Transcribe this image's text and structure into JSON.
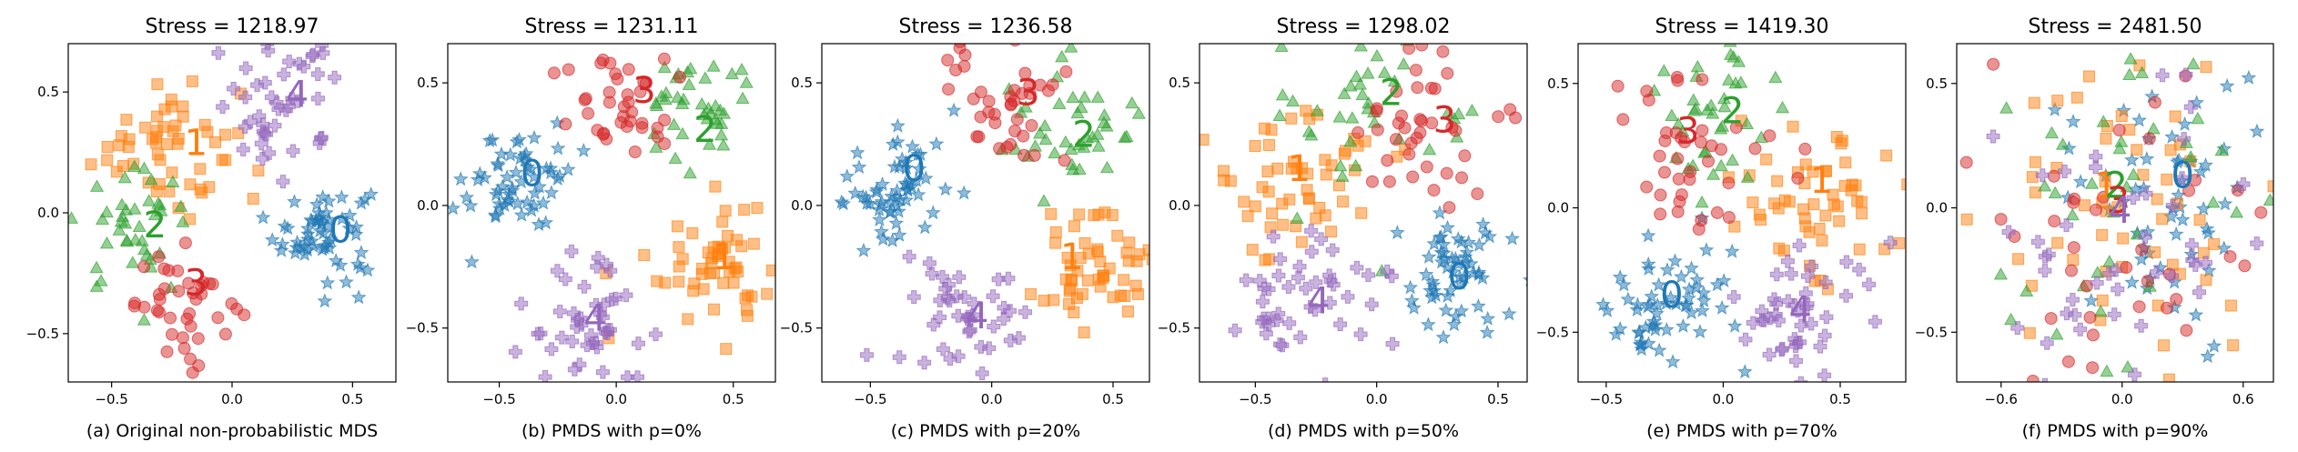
{
  "colors": {
    "0": "#1f77b4",
    "1": "#ff7f0e",
    "2": "#2ca02c",
    "3": "#d62728",
    "4": "#9467bd"
  },
  "markers": {
    "0": "star",
    "1": "square",
    "2": "triangle",
    "3": "circle",
    "4": "plus"
  },
  "chart_data": [
    {
      "type": "scatter",
      "title": "Stress = 1218.97",
      "caption": "(a) Original non-probabilistic MDS",
      "xlim": [
        -0.68,
        0.68
      ],
      "ylim": [
        -0.7,
        0.7
      ],
      "xticks": [
        -0.5,
        0.0,
        0.5
      ],
      "xtick_labels": [
        "−0.5",
        "0.0",
        "0.5"
      ],
      "yticks": [
        -0.5,
        0.0,
        0.5
      ],
      "ytick_labels": [
        "−0.5",
        "0.0",
        "0.5"
      ],
      "clusters": [
        {
          "label": "0",
          "center": [
            0.38,
            -0.08
          ],
          "spread": 0.1,
          "n": 60
        },
        {
          "label": "1",
          "center": [
            -0.28,
            0.3
          ],
          "spread": 0.15,
          "n": 55
        },
        {
          "label": "2",
          "center": [
            -0.42,
            -0.08
          ],
          "spread": 0.12,
          "n": 40
        },
        {
          "label": "3",
          "center": [
            -0.18,
            -0.38
          ],
          "spread": 0.11,
          "n": 40
        },
        {
          "label": "4",
          "center": [
            0.2,
            0.45
          ],
          "spread": 0.14,
          "n": 45
        }
      ],
      "text_labels": [
        {
          "text": "0",
          "x": 0.45,
          "y": -0.08,
          "cluster": "0"
        },
        {
          "text": "1",
          "x": -0.15,
          "y": 0.28,
          "cluster": "1"
        },
        {
          "text": "2",
          "x": -0.32,
          "y": -0.06,
          "cluster": "2"
        },
        {
          "text": "3",
          "x": -0.15,
          "y": -0.3,
          "cluster": "3"
        },
        {
          "text": "4",
          "x": 0.27,
          "y": 0.48,
          "cluster": "4"
        }
      ]
    },
    {
      "type": "scatter",
      "title": "Stress = 1231.11",
      "caption": "(b) PMDS with p=0%",
      "xlim": [
        -0.72,
        0.68
      ],
      "ylim": [
        -0.72,
        0.66
      ],
      "xticks": [
        -0.5,
        0.0,
        0.5
      ],
      "xtick_labels": [
        "−0.5",
        "0.0",
        "0.5"
      ],
      "yticks": [
        -0.5,
        0.0,
        0.5
      ],
      "ytick_labels": [
        "−0.5",
        "0.0",
        "0.5"
      ],
      "clusters": [
        {
          "label": "0",
          "center": [
            -0.42,
            0.1
          ],
          "spread": 0.11,
          "n": 60
        },
        {
          "label": "1",
          "center": [
            0.42,
            -0.22
          ],
          "spread": 0.14,
          "n": 55
        },
        {
          "label": "2",
          "center": [
            0.35,
            0.38
          ],
          "spread": 0.12,
          "n": 40
        },
        {
          "label": "3",
          "center": [
            0.0,
            0.45
          ],
          "spread": 0.12,
          "n": 40
        },
        {
          "label": "4",
          "center": [
            -0.12,
            -0.48
          ],
          "spread": 0.14,
          "n": 45
        }
      ],
      "text_labels": [
        {
          "text": "0",
          "x": -0.36,
          "y": 0.12,
          "cluster": "0"
        },
        {
          "text": "1",
          "x": 0.46,
          "y": -0.22,
          "cluster": "1"
        },
        {
          "text": "2",
          "x": 0.38,
          "y": 0.3,
          "cluster": "2"
        },
        {
          "text": "3",
          "x": 0.12,
          "y": 0.46,
          "cluster": "3"
        },
        {
          "text": "4",
          "x": -0.09,
          "y": -0.47,
          "cluster": "4"
        }
      ]
    },
    {
      "type": "scatter",
      "title": "Stress = 1236.58",
      "caption": "(c) PMDS with p=20%",
      "xlim": [
        -0.7,
        0.65
      ],
      "ylim": [
        -0.72,
        0.66
      ],
      "xticks": [
        -0.5,
        0.0,
        0.5
      ],
      "xtick_labels": [
        "−0.5",
        "0.0",
        "0.5"
      ],
      "yticks": [
        -0.5,
        0.0,
        0.5
      ],
      "ytick_labels": [
        "−0.5",
        "0.0",
        "0.5"
      ],
      "clusters": [
        {
          "label": "0",
          "center": [
            -0.38,
            0.08
          ],
          "spread": 0.12,
          "n": 60
        },
        {
          "label": "1",
          "center": [
            0.42,
            -0.28
          ],
          "spread": 0.14,
          "n": 55
        },
        {
          "label": "2",
          "center": [
            0.35,
            0.3
          ],
          "spread": 0.13,
          "n": 40
        },
        {
          "label": "3",
          "center": [
            0.05,
            0.42
          ],
          "spread": 0.13,
          "n": 40
        },
        {
          "label": "4",
          "center": [
            -0.12,
            -0.5
          ],
          "spread": 0.15,
          "n": 45
        }
      ],
      "text_labels": [
        {
          "text": "0",
          "x": -0.32,
          "y": 0.14,
          "cluster": "0"
        },
        {
          "text": "1",
          "x": 0.33,
          "y": -0.22,
          "cluster": "1"
        },
        {
          "text": "2",
          "x": 0.38,
          "y": 0.28,
          "cluster": "2"
        },
        {
          "text": "3",
          "x": 0.15,
          "y": 0.45,
          "cluster": "3"
        },
        {
          "text": "4",
          "x": -0.06,
          "y": -0.46,
          "cluster": "4"
        }
      ]
    },
    {
      "type": "scatter",
      "title": "Stress = 1298.02",
      "caption": "(d) PMDS with p=50%",
      "xlim": [
        -0.73,
        0.62
      ],
      "ylim": [
        -0.72,
        0.66
      ],
      "xticks": [
        -0.5,
        0.0,
        0.5
      ],
      "xtick_labels": [
        "−0.5",
        "0.0",
        "0.5"
      ],
      "yticks": [
        -0.5,
        0.0,
        0.5
      ],
      "ytick_labels": [
        "−0.5",
        "0.0",
        "0.5"
      ],
      "clusters": [
        {
          "label": "0",
          "center": [
            0.3,
            -0.3
          ],
          "spread": 0.13,
          "n": 60
        },
        {
          "label": "1",
          "center": [
            -0.32,
            0.1
          ],
          "spread": 0.17,
          "n": 55
        },
        {
          "label": "2",
          "center": [
            0.0,
            0.4
          ],
          "spread": 0.2,
          "n": 40
        },
        {
          "label": "3",
          "center": [
            0.2,
            0.3
          ],
          "spread": 0.14,
          "n": 40
        },
        {
          "label": "4",
          "center": [
            -0.3,
            -0.38
          ],
          "spread": 0.15,
          "n": 45
        }
      ],
      "text_labels": [
        {
          "text": "0",
          "x": 0.34,
          "y": -0.3,
          "cluster": "0"
        },
        {
          "text": "1",
          "x": -0.32,
          "y": 0.14,
          "cluster": "1"
        },
        {
          "text": "2",
          "x": 0.06,
          "y": 0.45,
          "cluster": "2"
        },
        {
          "text": "3",
          "x": 0.28,
          "y": 0.34,
          "cluster": "3"
        },
        {
          "text": "4",
          "x": -0.24,
          "y": -0.4,
          "cluster": "4"
        }
      ]
    },
    {
      "type": "scatter",
      "title": "Stress = 1419.30",
      "caption": "(e) PMDS with p=70%",
      "xlim": [
        -0.62,
        0.78
      ],
      "ylim": [
        -0.7,
        0.66
      ],
      "xticks": [
        -0.5,
        0.0,
        0.5
      ],
      "xtick_labels": [
        "−0.5",
        "0.0",
        "0.5"
      ],
      "yticks": [
        -0.5,
        0.0,
        0.5
      ],
      "ytick_labels": [
        "−0.5",
        "0.0",
        "0.5"
      ],
      "clusters": [
        {
          "label": "0",
          "center": [
            -0.22,
            -0.38
          ],
          "spread": 0.13,
          "n": 60
        },
        {
          "label": "1",
          "center": [
            0.35,
            0.05
          ],
          "spread": 0.18,
          "n": 55
        },
        {
          "label": "2",
          "center": [
            0.0,
            0.38
          ],
          "spread": 0.2,
          "n": 40
        },
        {
          "label": "3",
          "center": [
            -0.15,
            0.2
          ],
          "spread": 0.18,
          "n": 40
        },
        {
          "label": "4",
          "center": [
            0.3,
            -0.42
          ],
          "spread": 0.15,
          "n": 45
        }
      ],
      "text_labels": [
        {
          "text": "0",
          "x": -0.22,
          "y": -0.36,
          "cluster": "0"
        },
        {
          "text": "1",
          "x": 0.42,
          "y": 0.1,
          "cluster": "1"
        },
        {
          "text": "2",
          "x": 0.04,
          "y": 0.38,
          "cluster": "2"
        },
        {
          "text": "3",
          "x": -0.15,
          "y": 0.3,
          "cluster": "3"
        },
        {
          "text": "4",
          "x": 0.33,
          "y": -0.42,
          "cluster": "4"
        }
      ]
    },
    {
      "type": "scatter",
      "title": "Stress = 2481.50",
      "caption": "(f) PMDS with p=90%",
      "xlim": [
        -0.82,
        0.75
      ],
      "ylim": [
        -0.7,
        0.66
      ],
      "xticks": [
        -0.6,
        0.0,
        0.6
      ],
      "xtick_labels": [
        "−0.6",
        "0.0",
        "0.6"
      ],
      "yticks": [
        -0.5,
        0.0,
        0.5
      ],
      "ytick_labels": [
        "−0.5",
        "0.0",
        "0.5"
      ],
      "clusters": [
        {
          "label": "0",
          "center": [
            0.2,
            0.05
          ],
          "spread": 0.28,
          "n": 60
        },
        {
          "label": "1",
          "center": [
            -0.1,
            0.0
          ],
          "spread": 0.34,
          "n": 55
        },
        {
          "label": "2",
          "center": [
            0.0,
            0.0
          ],
          "spread": 0.36,
          "n": 40
        },
        {
          "label": "3",
          "center": [
            -0.1,
            -0.05
          ],
          "spread": 0.34,
          "n": 40
        },
        {
          "label": "4",
          "center": [
            0.0,
            0.0
          ],
          "spread": 0.34,
          "n": 45
        }
      ],
      "text_labels": [
        {
          "text": "0",
          "x": 0.3,
          "y": 0.12,
          "cluster": "0"
        },
        {
          "text": "1",
          "x": -0.08,
          "y": 0.08,
          "cluster": "1"
        },
        {
          "text": "2",
          "x": -0.03,
          "y": 0.08,
          "cluster": "2"
        },
        {
          "text": "3",
          "x": -0.02,
          "y": 0.02,
          "cluster": "3"
        },
        {
          "text": "4",
          "x": -0.01,
          "y": -0.02,
          "cluster": "4"
        }
      ]
    }
  ]
}
